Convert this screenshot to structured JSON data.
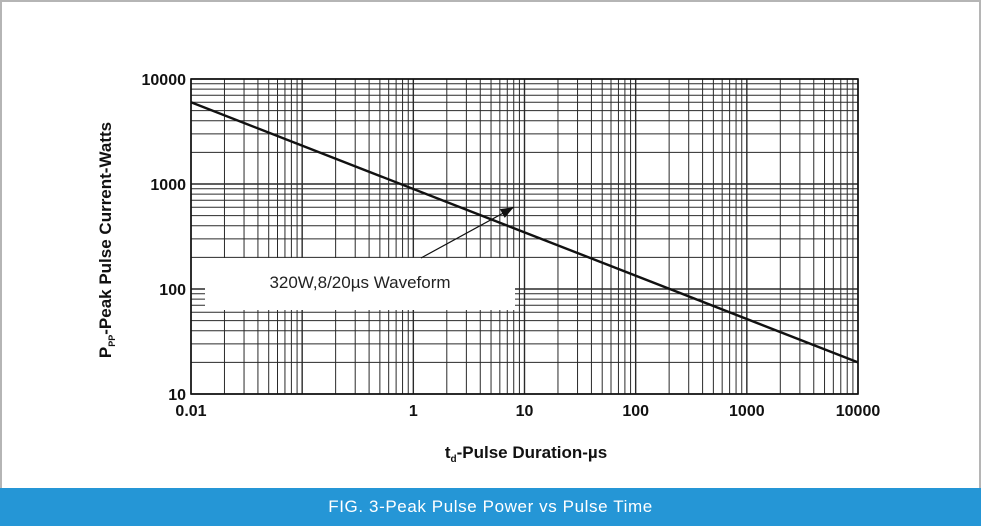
{
  "caption": "FIG. 3-Peak Pulse Power vs Pulse Time",
  "chart_data": {
    "type": "line",
    "title": "",
    "xlabel_main": "t",
    "xlabel_sub": "d",
    "xlabel_rest": "-Pulse Duration-µs",
    "ylabel_main": "P",
    "ylabel_sub": "PP",
    "ylabel_rest": "-Peak  Pulse  Current-Watts",
    "xscale": "log",
    "yscale": "log",
    "xlim": [
      0.01,
      10000
    ],
    "ylim": [
      10,
      10000
    ],
    "x_ticks": [
      0.01,
      1,
      10,
      100,
      1000,
      10000
    ],
    "x_tick_labels": [
      "0.01",
      "1",
      "10",
      "100",
      "1000",
      "10000"
    ],
    "y_ticks": [
      10,
      100,
      1000,
      10000
    ],
    "y_tick_labels": [
      "10",
      "100",
      "1000",
      "10000"
    ],
    "grid": true,
    "series": [
      {
        "x": [
          0.01,
          10000
        ],
        "y": [
          6000,
          20
        ]
      }
    ],
    "annotation": {
      "text": "320W,8/20µs Waveform",
      "arrow_to": [
        8,
        600
      ]
    }
  }
}
